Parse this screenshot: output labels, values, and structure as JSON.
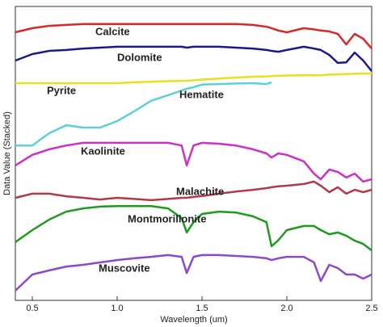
{
  "chart_data": {
    "type": "line",
    "xlabel": "Wavelength (um)",
    "ylabel": "Data Value (Stacked)",
    "xlim": [
      0.4,
      2.5
    ],
    "ylim": [
      0,
      100
    ],
    "xticks": [
      0.5,
      {
        "value": 1.0,
        "label": "1.0"
      },
      1.5,
      {
        "value": 2.0,
        "label": "2.0"
      },
      2.5
    ],
    "x": [
      0.4,
      0.5,
      0.6,
      0.7,
      0.8,
      0.9,
      1.0,
      1.1,
      1.2,
      1.3,
      1.38,
      1.41,
      1.45,
      1.5,
      1.6,
      1.7,
      1.8,
      1.88,
      1.91,
      1.95,
      2.0,
      2.1,
      2.16,
      2.2,
      2.25,
      2.3,
      2.35,
      2.4,
      2.45,
      2.5
    ],
    "series": [
      {
        "name": "Calcite",
        "color": "#d42a2a",
        "values": [
          91.2,
          92.6,
          93.4,
          93.7,
          94.0,
          94.0,
          94.0,
          94.0,
          94.0,
          94.0,
          94.0,
          94.0,
          94.0,
          94.0,
          94.0,
          94.0,
          93.7,
          93.1,
          92.6,
          91.8,
          91.2,
          92.6,
          92.2,
          91.8,
          91.5,
          90.7,
          87.1,
          90.7,
          89.0,
          85.7
        ]
      },
      {
        "name": "Dolomite",
        "color": "#1a1a8c",
        "values": [
          81.6,
          83.8,
          84.9,
          85.2,
          85.7,
          86.0,
          86.3,
          86.3,
          86.3,
          86.3,
          86.3,
          86.0,
          86.3,
          86.3,
          86.3,
          86.0,
          85.7,
          85.2,
          84.9,
          84.6,
          85.2,
          86.3,
          85.7,
          85.2,
          83.5,
          80.8,
          81.0,
          84.3,
          81.6,
          78.0
        ]
      },
      {
        "name": "Pyrite",
        "color": "#e8e020",
        "values": [
          73.9,
          73.9,
          73.9,
          73.9,
          73.9,
          73.9,
          73.9,
          74.2,
          74.4,
          74.6,
          74.7,
          74.7,
          74.9,
          75.1,
          75.5,
          75.8,
          76.1,
          76.2,
          76.3,
          76.4,
          76.5,
          76.6,
          76.6,
          76.6,
          76.8,
          76.9,
          77.0,
          77.1,
          77.2,
          77.2
        ]
      },
      {
        "name": "Hematite",
        "color": "#5ccfd8",
        "values": [
          52.7,
          52.7,
          56.9,
          59.6,
          58.8,
          58.8,
          61.0,
          64.3,
          67.9,
          69.8,
          71.4,
          72.0,
          72.5,
          73.4,
          73.6,
          73.8,
          73.9,
          73.6,
          74.2,
          null,
          null,
          null,
          null,
          null,
          null,
          null,
          null,
          null,
          null,
          null
        ]
      },
      {
        "name": "Kaolinite",
        "color": "#c832c8",
        "values": [
          45.9,
          49.5,
          51.4,
          52.7,
          53.6,
          53.6,
          53.6,
          53.6,
          53.6,
          53.6,
          52.7,
          45.9,
          52.7,
          53.6,
          53.3,
          52.7,
          51.4,
          50.0,
          48.6,
          50.0,
          49.5,
          47.3,
          43.1,
          41.2,
          44.5,
          43.7,
          41.8,
          43.1,
          40.4,
          41.2
        ]
      },
      {
        "name": "Malachite",
        "color": "#b03a4a",
        "values": [
          34.9,
          36.3,
          36.3,
          35.4,
          34.9,
          34.3,
          34.9,
          34.5,
          34.1,
          34.5,
          34.9,
          34.9,
          35.2,
          35.5,
          36.3,
          37.0,
          37.6,
          38.2,
          38.5,
          38.8,
          39.0,
          39.6,
          40.4,
          39.0,
          36.8,
          38.5,
          36.3,
          37.6,
          36.8,
          37.6
        ]
      },
      {
        "name": "Montmorillonite",
        "color": "#1e9a1e",
        "values": [
          19.8,
          23.9,
          27.5,
          30.2,
          31.3,
          31.9,
          32.1,
          32.1,
          32.1,
          31.3,
          28.0,
          23.1,
          26.6,
          29.4,
          30.2,
          29.9,
          28.6,
          26.6,
          18.4,
          20.5,
          23.9,
          25.3,
          25.3,
          23.9,
          22.5,
          23.1,
          22.0,
          20.3,
          19.2,
          17.0
        ]
      },
      {
        "name": "Muscovite",
        "color": "#8a4ac8",
        "values": [
          3.3,
          8.8,
          10.2,
          11.5,
          12.1,
          12.9,
          13.7,
          14.3,
          14.8,
          15.4,
          14.8,
          9.3,
          14.8,
          15.4,
          15.4,
          15.1,
          14.8,
          14.3,
          13.7,
          14.3,
          14.8,
          14.8,
          12.9,
          6.6,
          12.1,
          11.0,
          8.8,
          8.8,
          7.4,
          8.8
        ]
      }
    ]
  }
}
